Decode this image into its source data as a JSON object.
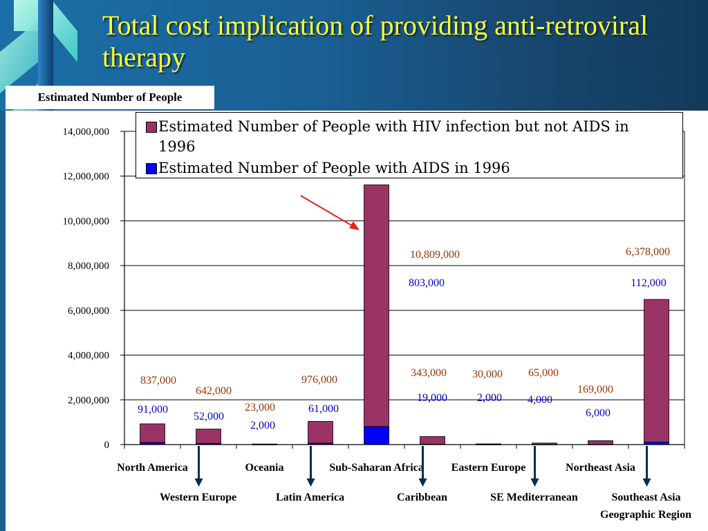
{
  "slide": {
    "title": "Total cost implication of providing anti-retroviral therapy",
    "subtitle": "Estimated Number of People"
  },
  "colors": {
    "hiv_not_aids": "#993366",
    "aids": "#0000ff",
    "hiv_label": "#993300",
    "aids_label": "#0000cc",
    "title": "#ffff33"
  },
  "chart_data": {
    "type": "bar",
    "stacked": true,
    "xlabel": "Geographic Region",
    "ylabel": "",
    "ylim": [
      0,
      14000000
    ],
    "yticks": [
      "0",
      "2,000,000",
      "4,000,000",
      "6,000,000",
      "8,000,000",
      "10,000,000",
      "12,000,000",
      "14,000,000"
    ],
    "grid": true,
    "legend": "top",
    "categories": [
      "North America",
      "Western Europe",
      "Oceania",
      "Latin America",
      "Sub-Saharan Africa",
      "Caribbean",
      "Eastern Europe",
      "SE Mediterranean",
      "Northeast Asia",
      "Southeast Asia"
    ],
    "series": [
      {
        "name": "Estimated Number of People with AIDS in 1996",
        "values": [
          91000,
          52000,
          2000,
          61000,
          803000,
          19000,
          2000,
          4000,
          6000,
          112000
        ],
        "labels": [
          "91,000",
          "52,000",
          "2,000",
          "61,000",
          "803,000",
          "19,000",
          "2,000",
          "4,000",
          "6,000",
          "112,000"
        ]
      },
      {
        "name": "Estimated Number of People with HIV infection but not AIDS in 1996",
        "values": [
          837000,
          642000,
          23000,
          976000,
          10809000,
          343000,
          30000,
          65000,
          169000,
          6378000
        ],
        "labels": [
          "837,000",
          "642,000",
          "23,000",
          "976,000",
          "10,809,000",
          "343,000",
          "30,000",
          "65,000",
          "169,000",
          "6,378,000"
        ]
      }
    ],
    "highlight": "Sub-Saharan Africa"
  }
}
